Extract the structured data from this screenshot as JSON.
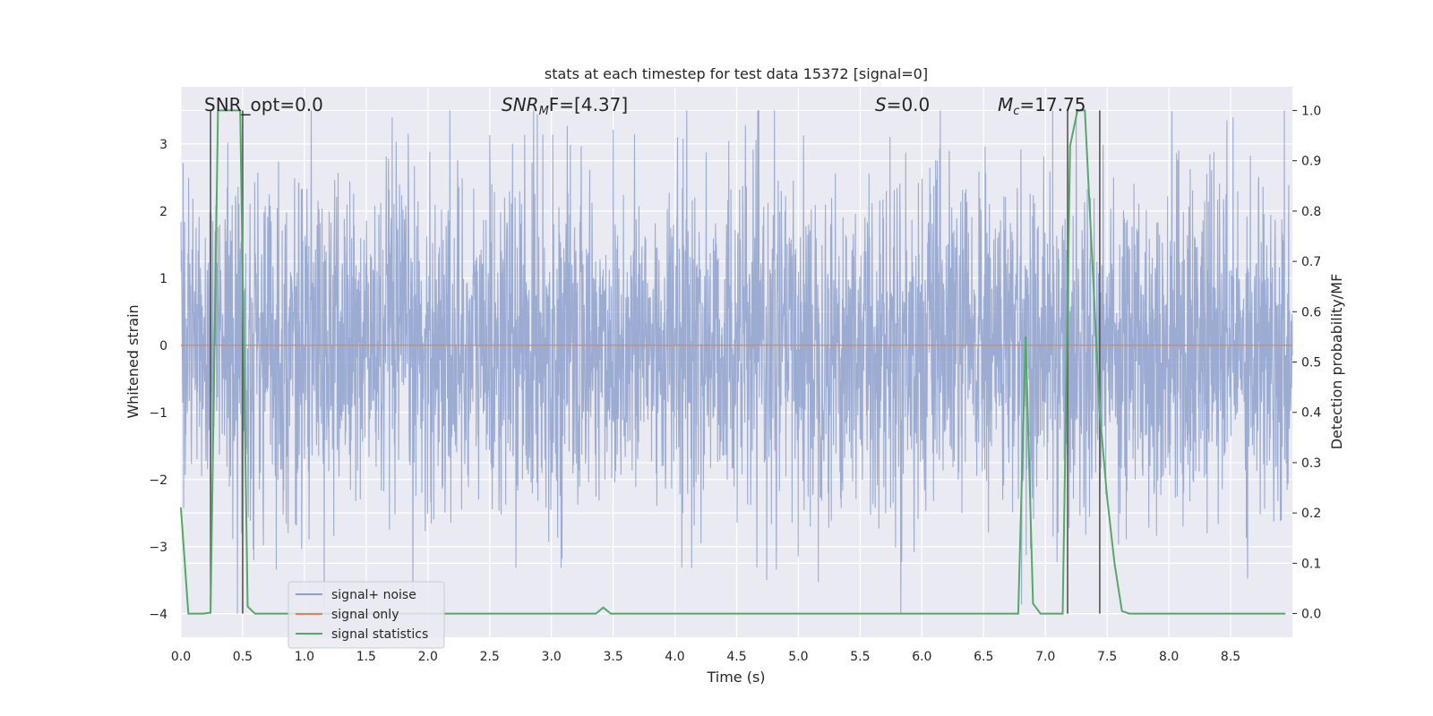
{
  "chart_data": {
    "type": "line",
    "title": "stats at each timestep for test data 15372 [signal=0]",
    "xlabel": "Time (s)",
    "ylabel_left": "Whitened strain",
    "ylabel_right": "Detection probability/MF",
    "xlim": [
      0.0,
      9.0
    ],
    "ylim_left": [
      -4.35,
      3.85
    ],
    "ylim_right": [
      -0.047,
      1.047
    ],
    "x_ticks": [
      "0.0",
      "0.5",
      "1.0",
      "1.5",
      "2.0",
      "2.5",
      "3.0",
      "3.5",
      "4.0",
      "4.5",
      "5.0",
      "5.5",
      "6.0",
      "6.5",
      "7.0",
      "7.5",
      "8.0",
      "8.5"
    ],
    "y_ticks_left": [
      "3",
      "2",
      "1",
      "0",
      "−1",
      "−2",
      "−3",
      "−4"
    ],
    "y_ticks_right": [
      "1.0",
      "0.9",
      "0.8",
      "0.7",
      "0.6",
      "0.5",
      "0.4",
      "0.3",
      "0.2",
      "0.1",
      "0.0"
    ],
    "grid": true,
    "legend_placement": "lower-left",
    "annotations": [
      {
        "id": "snr-opt",
        "text": "SNR_opt=0.0"
      },
      {
        "id": "snr-mf",
        "main": "SNR",
        "sub": "M",
        "tail": "F=[4.37]"
      },
      {
        "id": "s-stat",
        "main": "S",
        "tail": "=0.0"
      },
      {
        "id": "mc",
        "main": "M",
        "sub": "c",
        "tail": "=17.75"
      }
    ],
    "series": [
      {
        "name": "signal+ noise",
        "color": "#8da0cb",
        "axis": "left",
        "style": "dense noise, amplitude about ±1.3 with peaks near ±3.5",
        "seed": 15372
      },
      {
        "name": "signal only",
        "color": "#dd8452",
        "axis": "left",
        "x": [
          0.0,
          9.0
        ],
        "values": [
          0.0,
          0.0
        ]
      },
      {
        "name": "signal statistics",
        "color": "#55a868",
        "axis": "right",
        "x": [
          0.0,
          0.06,
          0.12,
          0.18,
          0.24,
          0.3,
          0.36,
          0.42,
          0.48,
          0.54,
          0.6,
          0.66,
          3.36,
          3.42,
          3.48,
          6.78,
          6.84,
          6.9,
          6.96,
          7.02,
          7.08,
          7.14,
          7.2,
          7.26,
          7.32,
          7.38,
          7.44,
          7.5,
          7.56,
          7.62,
          7.68,
          7.74,
          8.94
        ],
        "values": [
          0.21,
          0.0,
          0.0,
          0.0,
          0.002,
          1.0,
          1.0,
          1.0,
          1.0,
          0.014,
          0.0,
          0.0,
          0.0,
          0.012,
          0.0,
          0.0,
          0.55,
          0.02,
          0.0,
          0.0,
          0.0,
          0.0,
          0.93,
          1.0,
          1.0,
          0.7,
          0.4,
          0.23,
          0.1,
          0.005,
          0.0,
          0.0,
          0.0
        ]
      }
    ],
    "vertical_markers": [
      {
        "x": 0.24,
        "color": "#555555"
      },
      {
        "x": 0.5,
        "color": "#555555"
      },
      {
        "x": 7.18,
        "color": "#555555"
      },
      {
        "x": 7.44,
        "color": "#555555"
      }
    ]
  }
}
